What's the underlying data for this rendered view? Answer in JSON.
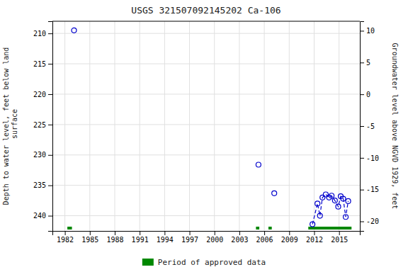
{
  "chart_data": {
    "type": "scatter",
    "title": "USGS 321507092145202 Ca-106",
    "ylabel": "Depth to water level, feet below land\n surface",
    "y2label": "Groundwater level above NGVD 1929, feet",
    "xlim": [
      1980.5,
      2017.5
    ],
    "xticks": [
      1982,
      1985,
      1988,
      1991,
      1994,
      1997,
      2000,
      2003,
      2006,
      2009,
      2012,
      2015
    ],
    "ylim": [
      242.5,
      208.0
    ],
    "yticks": [
      210,
      215,
      220,
      225,
      230,
      235,
      240
    ],
    "y2lim": [
      -21.5,
      11.5
    ],
    "y2ticks": [
      10,
      5,
      0,
      -5,
      -10,
      -15,
      -20
    ],
    "grid": true,
    "legend": "bottom",
    "series": [
      {
        "type": "scatter",
        "color": "#0000cc",
        "marker": "open_circle",
        "x": [
          1983.1,
          2005.3,
          2007.2,
          2011.8,
          2012.4,
          2012.7,
          2013.0,
          2013.4,
          2013.8,
          2014.1,
          2014.5,
          2014.9,
          2015.2,
          2015.5,
          2015.8,
          2016.1
        ],
        "values": [
          209.5,
          231.6,
          236.3,
          241.4,
          238.0,
          240.0,
          237.0,
          236.5,
          237.0,
          236.7,
          237.5,
          238.5,
          236.8,
          237.2,
          240.2,
          237.6
        ]
      },
      {
        "type": "line",
        "color": "#0000cc",
        "line_style": "dashed",
        "x": [
          2011.8,
          2012.4,
          2012.7,
          2013.0,
          2013.4,
          2013.8,
          2014.1,
          2014.5,
          2014.9,
          2015.2,
          2015.5,
          2015.8,
          2016.1
        ],
        "values": [
          241.4,
          238.0,
          240.0,
          237.0,
          236.5,
          237.0,
          236.7,
          237.5,
          238.5,
          236.8,
          237.2,
          240.2,
          237.6
        ]
      },
      {
        "type": "span",
        "name": "Period of approved data",
        "color": "#008800",
        "x": [
          1982.3,
          2005.0,
          2006.5,
          2011.3
        ],
        "width": [
          0.55,
          0.4,
          0.4,
          5.2
        ]
      }
    ]
  }
}
